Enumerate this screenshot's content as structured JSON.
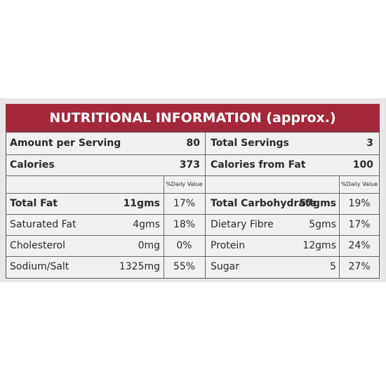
{
  "header": {
    "title": "NUTRITIONAL INFORMATION (approx.)"
  },
  "summary": {
    "rows": [
      [
        "Amount per Serving",
        "80",
        "Total Servings",
        "3"
      ],
      [
        "Calories",
        "373",
        "Calories from Fat",
        "100"
      ]
    ]
  },
  "table": {
    "daily_value_headers": [
      "%Daily Value",
      "%Daily Value"
    ],
    "rows": [
      [
        "Total Fat",
        "11gms",
        "17%",
        "Total Carbohydrate",
        "57gms",
        "19%"
      ],
      [
        "Saturated Fat",
        "4gms",
        "18%",
        "Dietary Fibre",
        "5gms",
        "17%"
      ],
      [
        "Cholesterol",
        "0mg",
        "0%",
        "Protein",
        "12gms",
        "24%"
      ],
      [
        "Sodium/Salt",
        "1325mg",
        "55%",
        "Sugar",
        "5",
        "27%"
      ]
    ]
  }
}
